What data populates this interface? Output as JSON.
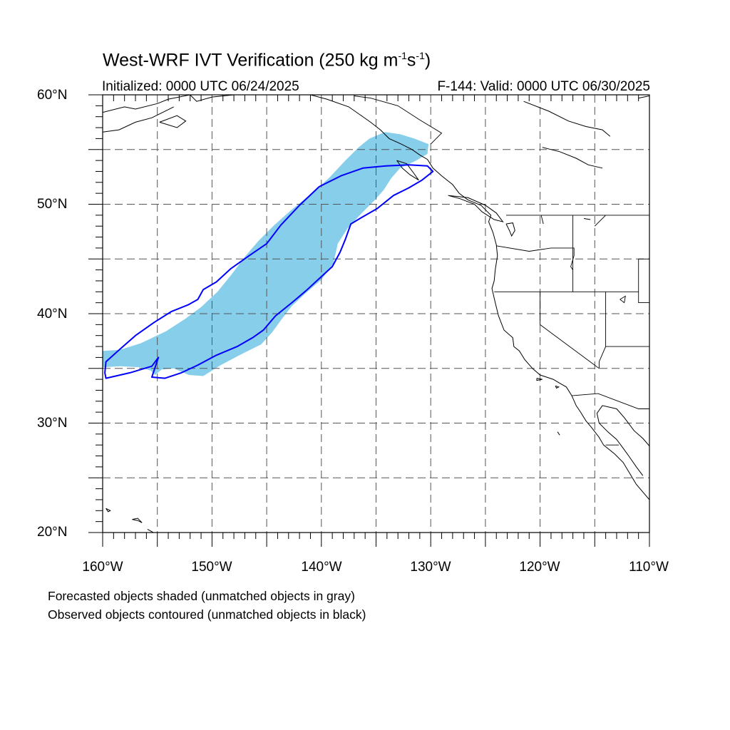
{
  "title": {
    "prefix": "West-WRF IVT Verification (250 kg m",
    "exp1": "-1",
    "mid": "s",
    "exp2": "-1",
    "suffix": ")"
  },
  "subtitle_left": "Initialized: 0000 UTC 06/24/2025",
  "subtitle_right": "F-144: Valid: 0000 UTC 06/30/2025",
  "lat_labels": [
    "60°N",
    "50°N",
    "40°N",
    "30°N",
    "20°N"
  ],
  "lon_labels": [
    "160°W",
    "150°W",
    "140°W",
    "130°W",
    "120°W",
    "110°W"
  ],
  "notes": [
    "Forecasted objects shaded (unmatched objects in gray)",
    "Observed objects contoured (unmatched objects in black)"
  ],
  "colors": {
    "forecast_fill": "#87ceeb",
    "observed_contour": "#0000ff",
    "grid": "#555555",
    "coast": "#000000"
  },
  "map": {
    "lon_range": [
      -160,
      -110
    ],
    "lat_range": [
      20,
      60
    ],
    "grid_lon": [
      -155,
      -150,
      -145,
      -140,
      -135,
      -130,
      -125,
      -120,
      -115
    ],
    "grid_lat": [
      25,
      30,
      35,
      40,
      45,
      50,
      55
    ]
  },
  "forecast_object": [
    [
      -160,
      36.6
    ],
    [
      -158.4,
      36.7
    ],
    [
      -156.5,
      37.3
    ],
    [
      -154.2,
      38.4
    ],
    [
      -152.5,
      39.5
    ],
    [
      -151,
      40.6
    ],
    [
      -149.5,
      42
    ],
    [
      -148.2,
      43.6
    ],
    [
      -147,
      45.2
    ],
    [
      -145.8,
      46.6
    ],
    [
      -144.3,
      48.1
    ],
    [
      -142.6,
      49.6
    ],
    [
      -141,
      50.9
    ],
    [
      -139.3,
      52.4
    ],
    [
      -137.8,
      54
    ],
    [
      -136.6,
      55.2
    ],
    [
      -135.6,
      56
    ],
    [
      -134.2,
      56.6
    ],
    [
      -132.8,
      56.4
    ],
    [
      -131.5,
      56
    ],
    [
      -130.2,
      55.5
    ],
    [
      -130.3,
      54.6
    ],
    [
      -131.5,
      53.9
    ],
    [
      -132.8,
      53.3
    ],
    [
      -133.6,
      52.4
    ],
    [
      -134.3,
      51.3
    ],
    [
      -135.1,
      50.4
    ],
    [
      -136.3,
      49.2
    ],
    [
      -137.6,
      47.8
    ],
    [
      -138.5,
      46.4
    ],
    [
      -138.9,
      44.6
    ],
    [
      -140,
      43.1
    ],
    [
      -141.4,
      41.9
    ],
    [
      -142.7,
      40.7
    ],
    [
      -143.7,
      39.4
    ],
    [
      -144.5,
      38.3
    ],
    [
      -145.5,
      37.2
    ],
    [
      -147.3,
      36.3
    ],
    [
      -149.2,
      35.3
    ],
    [
      -150.8,
      34.3
    ],
    [
      -152.1,
      34.4
    ],
    [
      -153.5,
      35
    ],
    [
      -154.6,
      34.9
    ],
    [
      -155.2,
      34.4
    ],
    [
      -155.6,
      34.8
    ],
    [
      -156.6,
      35.1
    ],
    [
      -158.4,
      35.2
    ],
    [
      -160,
      35.1
    ]
  ],
  "observed_object": [
    [
      -159.7,
      34.1
    ],
    [
      -157.5,
      34.6
    ],
    [
      -155.5,
      35.2
    ],
    [
      -154.9,
      36.0
    ],
    [
      -155.5,
      34.2
    ],
    [
      -154.3,
      34.1
    ],
    [
      -152.8,
      34.6
    ],
    [
      -151.3,
      35.3
    ],
    [
      -149.6,
      36.2
    ],
    [
      -147.7,
      37
    ],
    [
      -146.3,
      37.8
    ],
    [
      -145.3,
      38.5
    ],
    [
      -144.2,
      39.8
    ],
    [
      -142.7,
      41
    ],
    [
      -141.4,
      42.1
    ],
    [
      -140.2,
      43.2
    ],
    [
      -139,
      44.3
    ],
    [
      -138.3,
      45.6
    ],
    [
      -137.8,
      46.8
    ],
    [
      -137.3,
      48.2
    ],
    [
      -136.3,
      48.8
    ],
    [
      -134.9,
      49.6
    ],
    [
      -133.4,
      50.8
    ],
    [
      -132,
      51.5
    ],
    [
      -130.8,
      52.2
    ],
    [
      -129.8,
      53.0
    ],
    [
      -130.3,
      53.5
    ],
    [
      -132,
      53.6
    ],
    [
      -134.1,
      53.5
    ],
    [
      -136.2,
      53.3
    ],
    [
      -138.2,
      52.6
    ],
    [
      -140.2,
      51.6
    ],
    [
      -142,
      49.9
    ],
    [
      -143.7,
      48.1
    ],
    [
      -145,
      46.4
    ],
    [
      -146.6,
      45.3
    ],
    [
      -148.3,
      44.1
    ],
    [
      -149.6,
      42.9
    ],
    [
      -150.8,
      42.2
    ],
    [
      -151.3,
      41.3
    ],
    [
      -152.2,
      40.8
    ],
    [
      -153.7,
      40.2
    ],
    [
      -155.3,
      39.2
    ],
    [
      -157,
      38
    ],
    [
      -158.6,
      36.6
    ],
    [
      -159.7,
      35.6
    ],
    [
      -159.8,
      34.6
    ]
  ],
  "coastlines": [
    [
      [
        -160,
        58.4
      ],
      [
        -158,
        58.9
      ],
      [
        -157,
        58.7
      ],
      [
        -155,
        59.2
      ],
      [
        -154,
        59.6
      ],
      [
        -152,
        60
      ]
    ],
    [
      [
        -160,
        56.6
      ],
      [
        -158.5,
        56.8
      ],
      [
        -157,
        57.5
      ],
      [
        -155.5,
        57.9
      ],
      [
        -154.5,
        58.4
      ],
      [
        -153.5,
        58.9
      ]
    ],
    [
      [
        -154.8,
        57.5
      ],
      [
        -153.2,
        57.0
      ],
      [
        -152.4,
        57.6
      ],
      [
        -153.2,
        58.1
      ],
      [
        -154.8,
        57.5
      ]
    ],
    [
      [
        -152,
        60
      ],
      [
        -151.4,
        59.4
      ],
      [
        -150,
        59.8
      ],
      [
        -148,
        60
      ],
      [
        -146,
        60.5
      ]
    ],
    [
      [
        -141,
        60
      ],
      [
        -139.5,
        59.6
      ],
      [
        -137.5,
        58.9
      ],
      [
        -136.5,
        58.2
      ],
      [
        -135.5,
        57.5
      ],
      [
        -134.6,
        56.8
      ],
      [
        -133.8,
        56.0
      ],
      [
        -132.7,
        55.5
      ],
      [
        -131.7,
        55.0
      ],
      [
        -131,
        54.5
      ],
      [
        -130.3,
        54.1
      ],
      [
        -129.8,
        53.3
      ],
      [
        -129,
        52.6
      ],
      [
        -128,
        51.8
      ],
      [
        -127.4,
        51.0
      ],
      [
        -126.6,
        50.4
      ],
      [
        -125.4,
        49.9
      ],
      [
        -124.9,
        49.4
      ],
      [
        -124.5,
        49.0
      ],
      [
        -124.7,
        48.4
      ],
      [
        -124.3,
        47.4
      ],
      [
        -124.0,
        46.3
      ],
      [
        -123.9,
        45.3
      ],
      [
        -124.1,
        44.0
      ],
      [
        -124.2,
        43.0
      ],
      [
        -124.4,
        42.3
      ],
      [
        -124.1,
        41.0
      ],
      [
        -123.8,
        39.8
      ],
      [
        -123.3,
        38.5
      ],
      [
        -122.5,
        37.8
      ],
      [
        -122.4,
        37.0
      ],
      [
        -121.9,
        36.6
      ],
      [
        -121.4,
        35.8
      ],
      [
        -120.7,
        35.0
      ],
      [
        -120.0,
        34.4
      ],
      [
        -118.8,
        34.0
      ],
      [
        -118.3,
        33.7
      ],
      [
        -117.6,
        33.3
      ],
      [
        -117.1,
        32.5
      ],
      [
        -116.7,
        31.6
      ],
      [
        -116.3,
        31.0
      ],
      [
        -115.8,
        30.2
      ],
      [
        -115.3,
        29.6
      ],
      [
        -114.6,
        28.7
      ],
      [
        -114.2,
        28.0
      ],
      [
        -113.2,
        27.2
      ],
      [
        -112.4,
        26.4
      ],
      [
        -111.8,
        25.4
      ],
      [
        -111.2,
        24.4
      ],
      [
        -110.6,
        23.7
      ],
      [
        -110,
        23.0
      ]
    ],
    [
      [
        -110,
        27.9
      ],
      [
        -110.6,
        28.6
      ],
      [
        -111.4,
        29.3
      ],
      [
        -112.3,
        30.5
      ],
      [
        -113.0,
        31.3
      ],
      [
        -114.3,
        31.6
      ],
      [
        -114.8,
        30.9
      ],
      [
        -114.6,
        30.0
      ],
      [
        -113.8,
        29.2
      ],
      [
        -113.0,
        28.5
      ],
      [
        -112.4,
        27.7
      ],
      [
        -111.9,
        27.0
      ],
      [
        -111.2,
        26.0
      ],
      [
        -110.6,
        25.2
      ]
    ],
    [
      [
        -133.1,
        54.0
      ],
      [
        -132.2,
        53.7
      ],
      [
        -131.6,
        52.9
      ],
      [
        -131.1,
        52.2
      ],
      [
        -131.9,
        52.7
      ],
      [
        -132.6,
        53.3
      ],
      [
        -133.1,
        54.0
      ]
    ],
    [
      [
        -128.4,
        50.8
      ],
      [
        -127.3,
        50.5
      ],
      [
        -126.0,
        50.0
      ],
      [
        -125.3,
        49.3
      ],
      [
        -124.2,
        48.6
      ],
      [
        -123.4,
        48.4
      ],
      [
        -124.0,
        49.2
      ],
      [
        -125.0,
        49.9
      ],
      [
        -126.6,
        50.6
      ],
      [
        -128.4,
        50.8
      ]
    ],
    [
      [
        -123.1,
        48.2
      ],
      [
        -122.8,
        47.6
      ],
      [
        -122.6,
        47.1
      ],
      [
        -122.3,
        47.6
      ],
      [
        -122.5,
        48.3
      ],
      [
        -123.1,
        48.2
      ]
    ],
    [
      [
        -121.5,
        59.4
      ],
      [
        -119.2,
        58.5
      ],
      [
        -117.4,
        57.6
      ],
      [
        -115.8,
        57.1
      ],
      [
        -114.3,
        56.8
      ],
      [
        -113.6,
        56.2
      ]
    ],
    [
      [
        -119.8,
        55.2
      ],
      [
        -118.2,
        54.8
      ],
      [
        -116.7,
        54.2
      ],
      [
        -115.6,
        53.6
      ],
      [
        -114.3,
        53.3
      ]
    ],
    [
      [
        -111.0,
        59.7
      ],
      [
        -110,
        59.9
      ]
    ],
    [
      [
        -155.9,
        20.3
      ],
      [
        -155.0,
        19.8
      ],
      [
        -155.5,
        19.3
      ]
    ],
    [
      [
        -157.3,
        21.2
      ],
      [
        -156.8,
        21.1
      ],
      [
        -156.4,
        20.9
      ],
      [
        -156.8,
        21.3
      ],
      [
        -157.3,
        21.2
      ]
    ],
    [
      [
        -159.7,
        22.2
      ],
      [
        -159.3,
        22.0
      ],
      [
        -159.5,
        21.9
      ],
      [
        -159.7,
        22.2
      ]
    ],
    [
      [
        -120.3,
        34.1
      ],
      [
        -119.8,
        34.0
      ],
      [
        -120.3,
        33.9
      ],
      [
        -120.3,
        34.1
      ]
    ],
    [
      [
        -118.6,
        33.4
      ],
      [
        -118.3,
        33.3
      ],
      [
        -118.5,
        33.2
      ],
      [
        -118.6,
        33.4
      ]
    ],
    [
      [
        -118.4,
        29.2
      ],
      [
        -118.2,
        28.9
      ]
    ]
  ],
  "borders": [
    [
      [
        -141,
        60
      ],
      [
        -141,
        60.1
      ]
    ],
    [
      [
        -130.0,
        55.5
      ],
      [
        -129.0,
        56.5
      ],
      [
        -131.0,
        57.7
      ],
      [
        -133.0,
        59.0
      ],
      [
        -135.5,
        59.7
      ],
      [
        -137.0,
        59.9
      ]
    ],
    [
      [
        -123.1,
        49.0
      ],
      [
        -110,
        49.0
      ]
    ],
    [
      [
        -124.0,
        46.2
      ],
      [
        -121.0,
        45.7
      ],
      [
        -119.0,
        46.0
      ],
      [
        -116.9,
        46.0
      ],
      [
        -116.9,
        45.3
      ],
      [
        -117.2,
        44.3
      ],
      [
        -117.0,
        44.0
      ]
    ],
    [
      [
        -117.0,
        49.0
      ],
      [
        -117.0,
        44.0
      ],
      [
        -117.0,
        42.0
      ]
    ],
    [
      [
        -124.2,
        42.0
      ],
      [
        -111.0,
        42.0
      ]
    ],
    [
      [
        -120.0,
        42.0
      ],
      [
        -120.0,
        39.0
      ],
      [
        -114.6,
        35.0
      ]
    ],
    [
      [
        -114.0,
        42.0
      ],
      [
        -114.0,
        37.0
      ],
      [
        -114.6,
        35.6
      ],
      [
        -114.6,
        35.0
      ]
    ],
    [
      [
        -114.0,
        37.0
      ],
      [
        -110,
        37.0
      ]
    ],
    [
      [
        -111.0,
        45.0
      ],
      [
        -110,
        45.0
      ]
    ],
    [
      [
        -111.0,
        45.0
      ],
      [
        -111.0,
        41.0
      ],
      [
        -110,
        41.0
      ]
    ],
    [
      [
        -117.1,
        32.5
      ],
      [
        -114.7,
        32.7
      ],
      [
        -111.0,
        31.3
      ],
      [
        -110,
        31.3
      ]
    ],
    [
      [
        -115.0,
        48.0
      ],
      [
        -114.0,
        49.0
      ]
    ],
    [
      [
        -116.0,
        48.7
      ],
      [
        -115.4,
        48.6
      ]
    ],
    [
      [
        -119.9,
        49.0
      ],
      [
        -119.7,
        48.2
      ]
    ],
    [
      [
        -114.0,
        28.0
      ],
      [
        -112.8,
        28.0
      ]
    ]
  ],
  "lakes": [
    [
      [
        -112.7,
        41.3
      ],
      [
        -112.2,
        41.6
      ],
      [
        -112.3,
        41.0
      ],
      [
        -112.7,
        41.3
      ]
    ]
  ]
}
